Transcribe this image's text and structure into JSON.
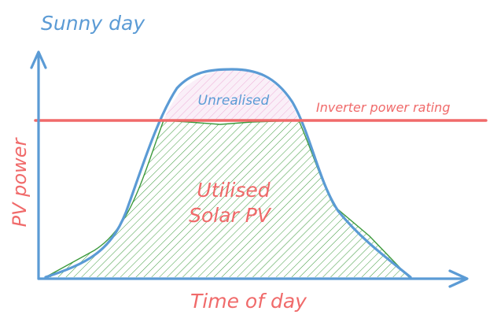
{
  "title": "Sunny day",
  "axes": {
    "x_label": "Time of day",
    "y_label": "PV power"
  },
  "labels": {
    "unrealised": "Unrealised",
    "utilised_line1": "Utilised",
    "utilised_line2": "Solar PV",
    "inverter": "Inverter power rating"
  },
  "colors": {
    "blue": "#5b9bd5",
    "red": "#f06a6a",
    "green": "#3d9a3d",
    "pink": "#e36fb4"
  }
}
